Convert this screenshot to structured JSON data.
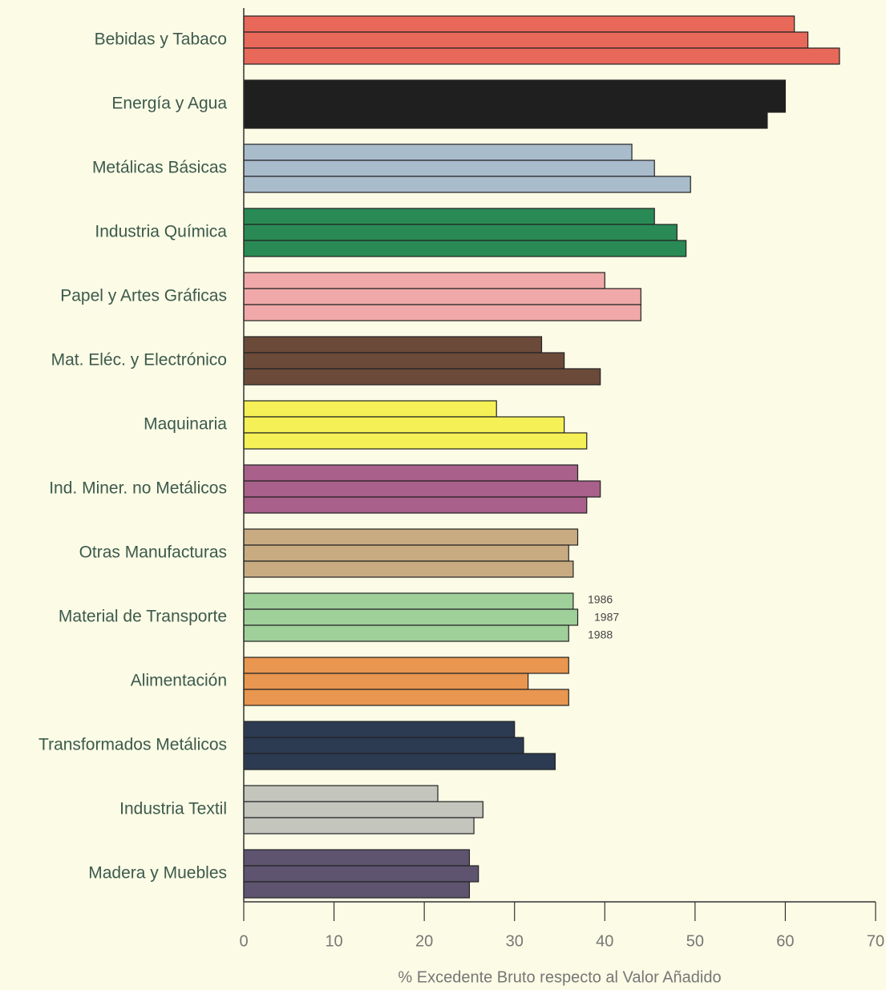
{
  "chart_data": {
    "type": "grouped-barh",
    "x_label": "% Excedente Bruto respecto al Valor Añadido",
    "categories": [
      "Bebidas y Tabaco",
      "Energía y Agua",
      "Metálicas Básicas",
      "Industria Química",
      "Papel y Artes Gráficas",
      "Mat. Eléc. y Electrónico",
      "Maquinaria",
      "Ind. Miner. no Metálicos",
      "Otras Manufacturas",
      "Material de Transporte",
      "Alimentación",
      "Transformados Metálicos",
      "Industria Textil",
      "Madera y Muebles"
    ],
    "category_colors": [
      "#e8685a",
      "#1f1f1f",
      "#a9bccc",
      "#2a8a55",
      "#f0a9a8",
      "#6b4a3a",
      "#f5f055",
      "#a9608a",
      "#c9ab82",
      "#9fd09a",
      "#e89650",
      "#2c3a52",
      "#c4c6be",
      "#5e5470"
    ],
    "series": [
      {
        "name": "1986",
        "values": [
          61,
          60,
          43,
          45.5,
          40,
          33,
          28,
          37,
          37,
          36.5,
          36,
          30,
          21.5,
          25
        ]
      },
      {
        "name": "1987",
        "values": [
          62.5,
          60,
          45.5,
          48,
          44,
          35.5,
          35.5,
          39.5,
          36,
          37,
          31.5,
          31,
          26.5,
          26
        ]
      },
      {
        "name": "1988",
        "values": [
          66,
          58,
          49.5,
          49,
          44,
          39.5,
          38,
          38,
          36.5,
          36,
          36,
          34.5,
          25.5,
          25
        ]
      }
    ],
    "xlim": [
      0,
      70
    ],
    "xticks": [
      0,
      10,
      20,
      30,
      40,
      50,
      60,
      70
    ]
  }
}
